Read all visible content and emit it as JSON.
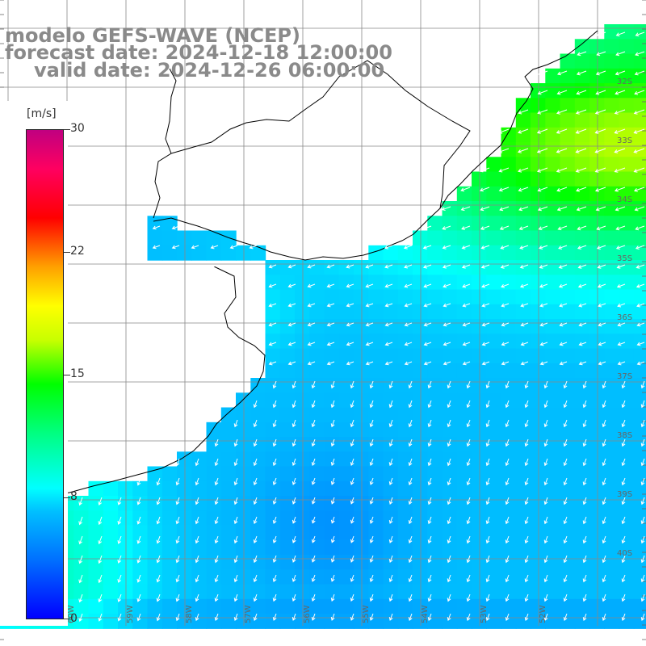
{
  "title": {
    "line1": "modelo GEFS-WAVE (NCEP)",
    "line2": "forecast date: 2024-12-18 12:00:00",
    "line3": "valid date: 2024-12-26 06:00:00"
  },
  "colorbar": {
    "unit": "[m/s]",
    "ticks": [
      "30",
      "22",
      "15",
      "8",
      "0"
    ],
    "tick_values": [
      30,
      22,
      15,
      8,
      0
    ],
    "range": [
      0,
      30
    ],
    "colors": [
      "#0000ff",
      "#0070ff",
      "#00c0ff",
      "#00ffff",
      "#00ff80",
      "#00ff00",
      "#c8ff00",
      "#ffff00",
      "#ffa000",
      "#ff0000",
      "#ff0060",
      "#c00080"
    ]
  },
  "map": {
    "lat_labels": [
      "32S",
      "33S",
      "34S",
      "35S",
      "36S",
      "37S",
      "38S",
      "39S",
      "40S"
    ],
    "lon_labels": [
      "61W",
      "60W",
      "59W",
      "58W",
      "57W",
      "56W",
      "55W",
      "54W",
      "53W",
      "52W"
    ],
    "land_color": "#ffffff",
    "coast_color": "#000000",
    "grid_color": "#777777",
    "arrow_color": "#ffffff",
    "wind_direction": "from north-east, arrows pointing south-west",
    "max_wind_region": "north-east, ~14-15 m/s",
    "min_wind_region": "south-center, ~5-6 m/s"
  }
}
